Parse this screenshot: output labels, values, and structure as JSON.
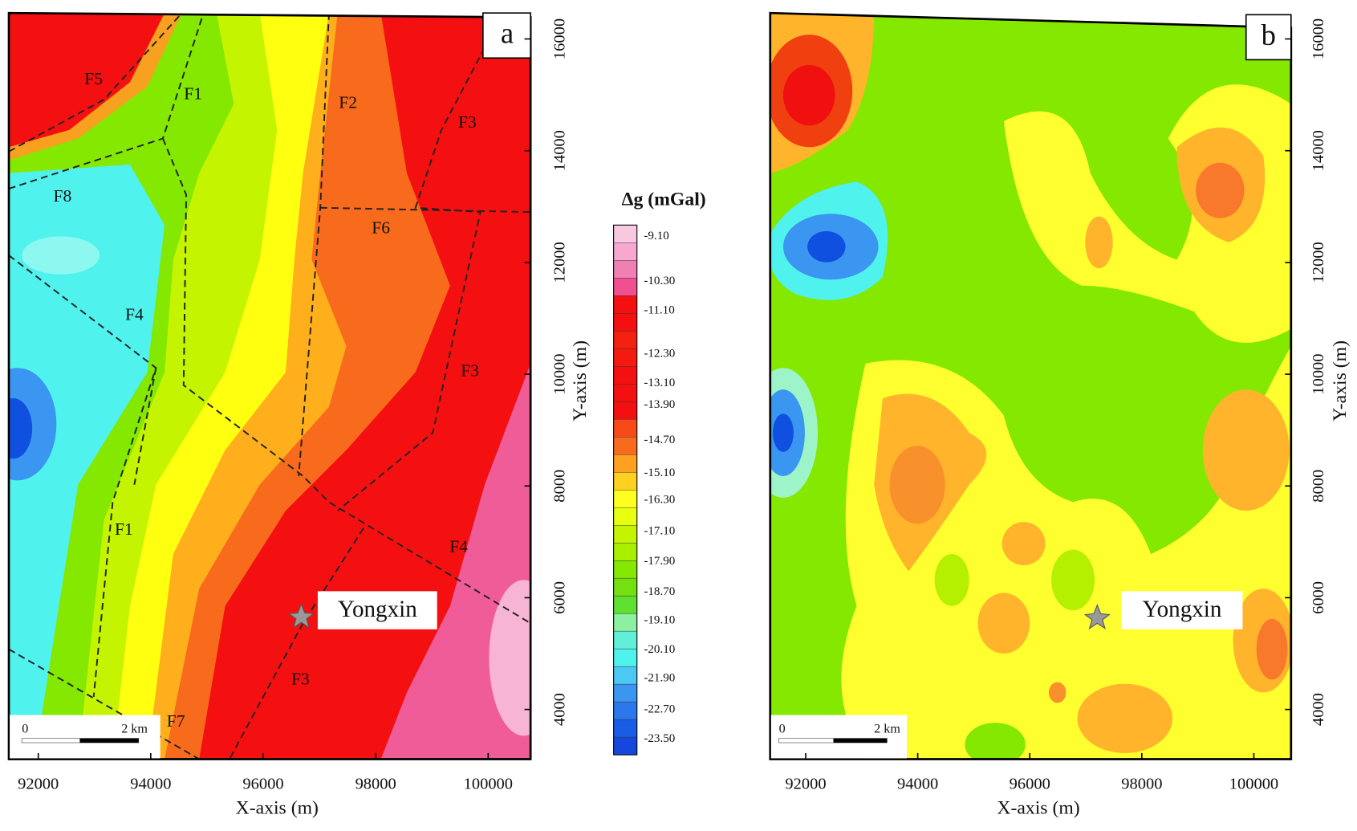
{
  "colorbar": {
    "title": "Δg (mGal)",
    "labels": [
      "-9.10",
      "-10.30",
      "-11.10",
      "-12.30",
      "-13.10",
      "-13.90",
      "-14.70",
      "-15.10",
      "-16.30",
      "-17.10",
      "-17.90",
      "-18.70",
      "-19.10",
      "-20.10",
      "-21.90",
      "-22.70",
      "-23.50"
    ]
  },
  "panels": [
    {
      "letter": "a",
      "x_label": "X-axis (m)",
      "y_label": "Y-axis (m)",
      "xticks": [
        92000,
        94000,
        96000,
        98000,
        100000
      ],
      "yticks": [
        16000,
        14000,
        12000,
        10000,
        8000,
        6000,
        4000
      ],
      "scalebar": {
        "start": "0",
        "end": "2 km"
      },
      "place": "Yongxin",
      "faults": [
        "F5",
        "F1",
        "F2",
        "F3",
        "F8",
        "F6",
        "F4",
        "F3",
        "F1",
        "F4",
        "F3",
        "F7"
      ]
    },
    {
      "letter": "b",
      "x_label": "X-axis (m)",
      "y_label": "Y-axis (m)",
      "xticks": [
        92000,
        94000,
        96000,
        98000,
        100000
      ],
      "yticks": [
        16000,
        14000,
        12000,
        10000,
        8000,
        6000,
        4000
      ],
      "scalebar": {
        "start": "0",
        "end": "2 km"
      },
      "place": "Yongxin"
    }
  ]
}
